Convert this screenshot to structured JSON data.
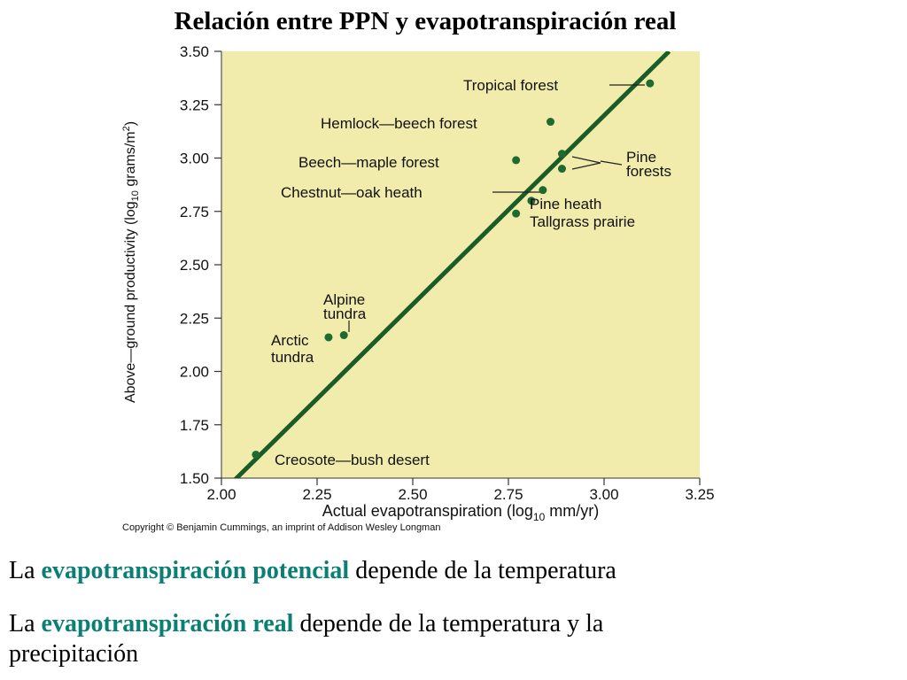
{
  "slide": {
    "title": "Relación entre PPN y evapotranspiración real",
    "line1": {
      "prefix": "La ",
      "highlight": "evapotranspiración potencial",
      "suffix": " depende de la temperatura"
    },
    "line2": {
      "prefix": "La ",
      "highlight": "evapotranspiración real",
      "suffix": " depende de la temperatura y la",
      "line_end": "precipitación"
    }
  },
  "colors": {
    "plot_bg": "#f1ecab",
    "points": "#1e6b2f",
    "regression": "#1a5c28",
    "highlight_text": "#0a7f74"
  },
  "chart_data": {
    "type": "scatter",
    "title": "",
    "xlabel": "Actual evapotranspiration (log",
    "xlabel_sub": "10",
    "xlabel_tail": " mm/yr)",
    "ylabel": "Above—ground productivity (log",
    "ylabel_sub": "10",
    "ylabel_tail": " grams/m",
    "ylabel_sup": "2",
    "ylabel_close": ")",
    "xlim": [
      2.0,
      3.25
    ],
    "ylim": [
      1.5,
      3.5
    ],
    "x_ticks": [
      "2.00",
      "2.25",
      "2.50",
      "2.75",
      "3.00",
      "3.25"
    ],
    "y_ticks": [
      "1.50",
      "1.75",
      "2.00",
      "2.25",
      "2.50",
      "2.75",
      "3.00",
      "3.25",
      "3.50"
    ],
    "grid": false,
    "regression_line": {
      "x": [
        2.0,
        3.17
      ],
      "y": [
        1.43,
        3.5
      ]
    },
    "points": [
      {
        "x": 3.12,
        "y": 3.35
      },
      {
        "x": 2.86,
        "y": 3.17
      },
      {
        "x": 2.89,
        "y": 3.02
      },
      {
        "x": 2.89,
        "y": 2.95
      },
      {
        "x": 2.77,
        "y": 2.99
      },
      {
        "x": 2.84,
        "y": 2.85
      },
      {
        "x": 2.81,
        "y": 2.8
      },
      {
        "x": 2.77,
        "y": 2.74
      },
      {
        "x": 2.32,
        "y": 2.17
      },
      {
        "x": 2.28,
        "y": 2.16
      },
      {
        "x": 2.09,
        "y": 1.61
      }
    ],
    "labels": [
      {
        "text": "Tropical forest"
      },
      {
        "text": "Hemlock—beech forest"
      },
      {
        "text": "Pine"
      },
      {
        "text": "forests"
      },
      {
        "text": "Beech—maple forest"
      },
      {
        "text": "Chestnut—oak heath"
      },
      {
        "text": "Pine heath"
      },
      {
        "text": "Tallgrass prairie"
      },
      {
        "text": "Alpine"
      },
      {
        "text": "tundra"
      },
      {
        "text": "Arctic"
      },
      {
        "text": "tundra"
      },
      {
        "text": "Creosote—bush desert"
      }
    ],
    "copyright": "Copyright © Benjamin Cummings, an imprint of Addison Wesley Longman"
  }
}
